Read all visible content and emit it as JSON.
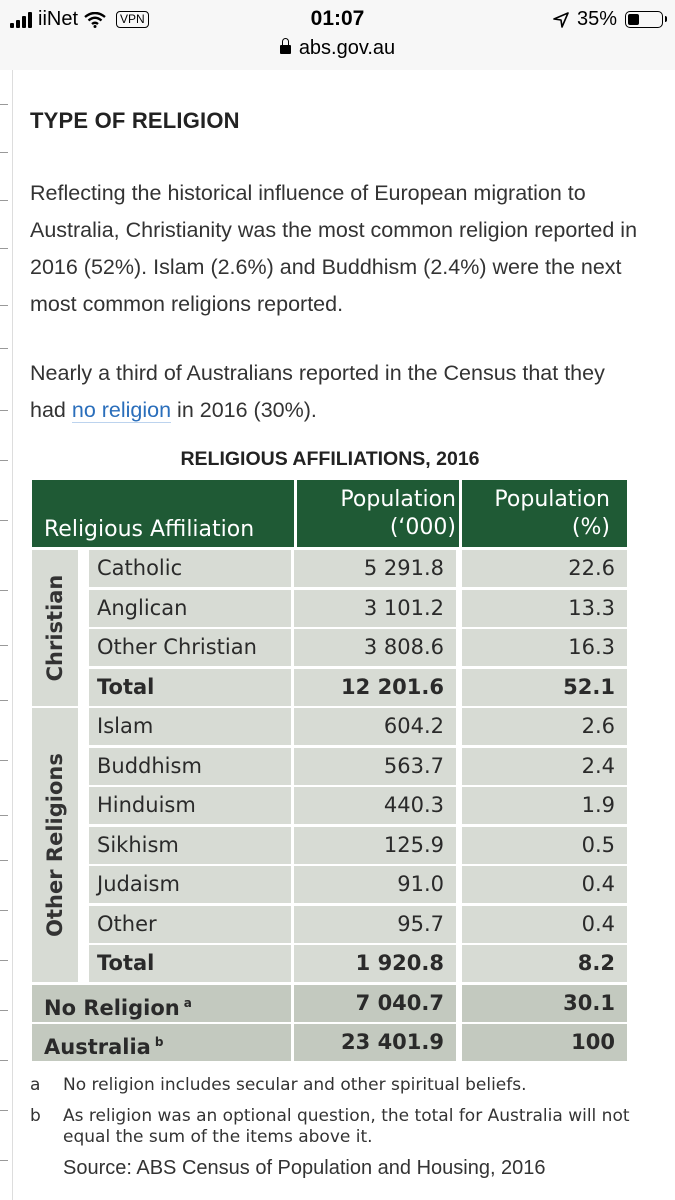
{
  "status_bar": {
    "carrier": "iiNet",
    "vpn": "VPN",
    "time": "01:07",
    "url": "abs.gov.au",
    "battery": "35%"
  },
  "article": {
    "heading": "TYPE OF RELIGION",
    "paragraph1": "Reflecting the historical influence of European migration to Australia, Christianity was the most common religion reported in 2016 (52%). Islam (2.6%) and Buddhism (2.4%) were the next most common religions reported.",
    "paragraph2_before": "Nearly a third of Australians reported in the Census that they had ",
    "paragraph2_link": "no religion",
    "paragraph2_after": " in 2016 (30%)."
  },
  "table": {
    "title": "RELIGIOUS AFFILIATIONS, 2016",
    "header_affiliation": "Religious Affiliation",
    "header_population": "Population\n(‘000)",
    "header_percent": "Population\n(%)",
    "christian_label": "Christian",
    "other_label": "Other Religions",
    "christian_rows": [
      {
        "name": "Catholic",
        "pop": "5 291.8",
        "pct": "22.6"
      },
      {
        "name": "Anglican",
        "pop": "3 101.2",
        "pct": "13.3"
      },
      {
        "name": "Other Christian",
        "pop": "3 808.6",
        "pct": "16.3"
      },
      {
        "name": "Total",
        "pop": "12 201.6",
        "pct": "52.1"
      }
    ],
    "other_rows": [
      {
        "name": "Islam",
        "pop": "604.2",
        "pct": "2.6"
      },
      {
        "name": "Buddhism",
        "pop": "563.7",
        "pct": "2.4"
      },
      {
        "name": "Hinduism",
        "pop": "440.3",
        "pct": "1.9"
      },
      {
        "name": "Sikhism",
        "pop": "125.9",
        "pct": "0.5"
      },
      {
        "name": "Judaism",
        "pop": "91.0",
        "pct": "0.4"
      },
      {
        "name": "Other",
        "pop": "95.7",
        "pct": "0.4"
      },
      {
        "name": "Total",
        "pop": "1 920.8",
        "pct": "8.2"
      }
    ],
    "no_religion": {
      "name": "No Religion",
      "sup": "a",
      "pop": "7 040.7",
      "pct": "30.1"
    },
    "australia": {
      "name": "Australia",
      "sup": "b",
      "pop": "23 401.9",
      "pct": "100"
    },
    "footnote_a_key": "a",
    "footnote_a": "No religion includes secular and other spiritual beliefs.",
    "footnote_b_key": "b",
    "footnote_b": "As religion was an optional question, the total for Australia will not equal the sum of the items above it.",
    "source": "Source: ABS Census of Population and Housing, 2016"
  }
}
